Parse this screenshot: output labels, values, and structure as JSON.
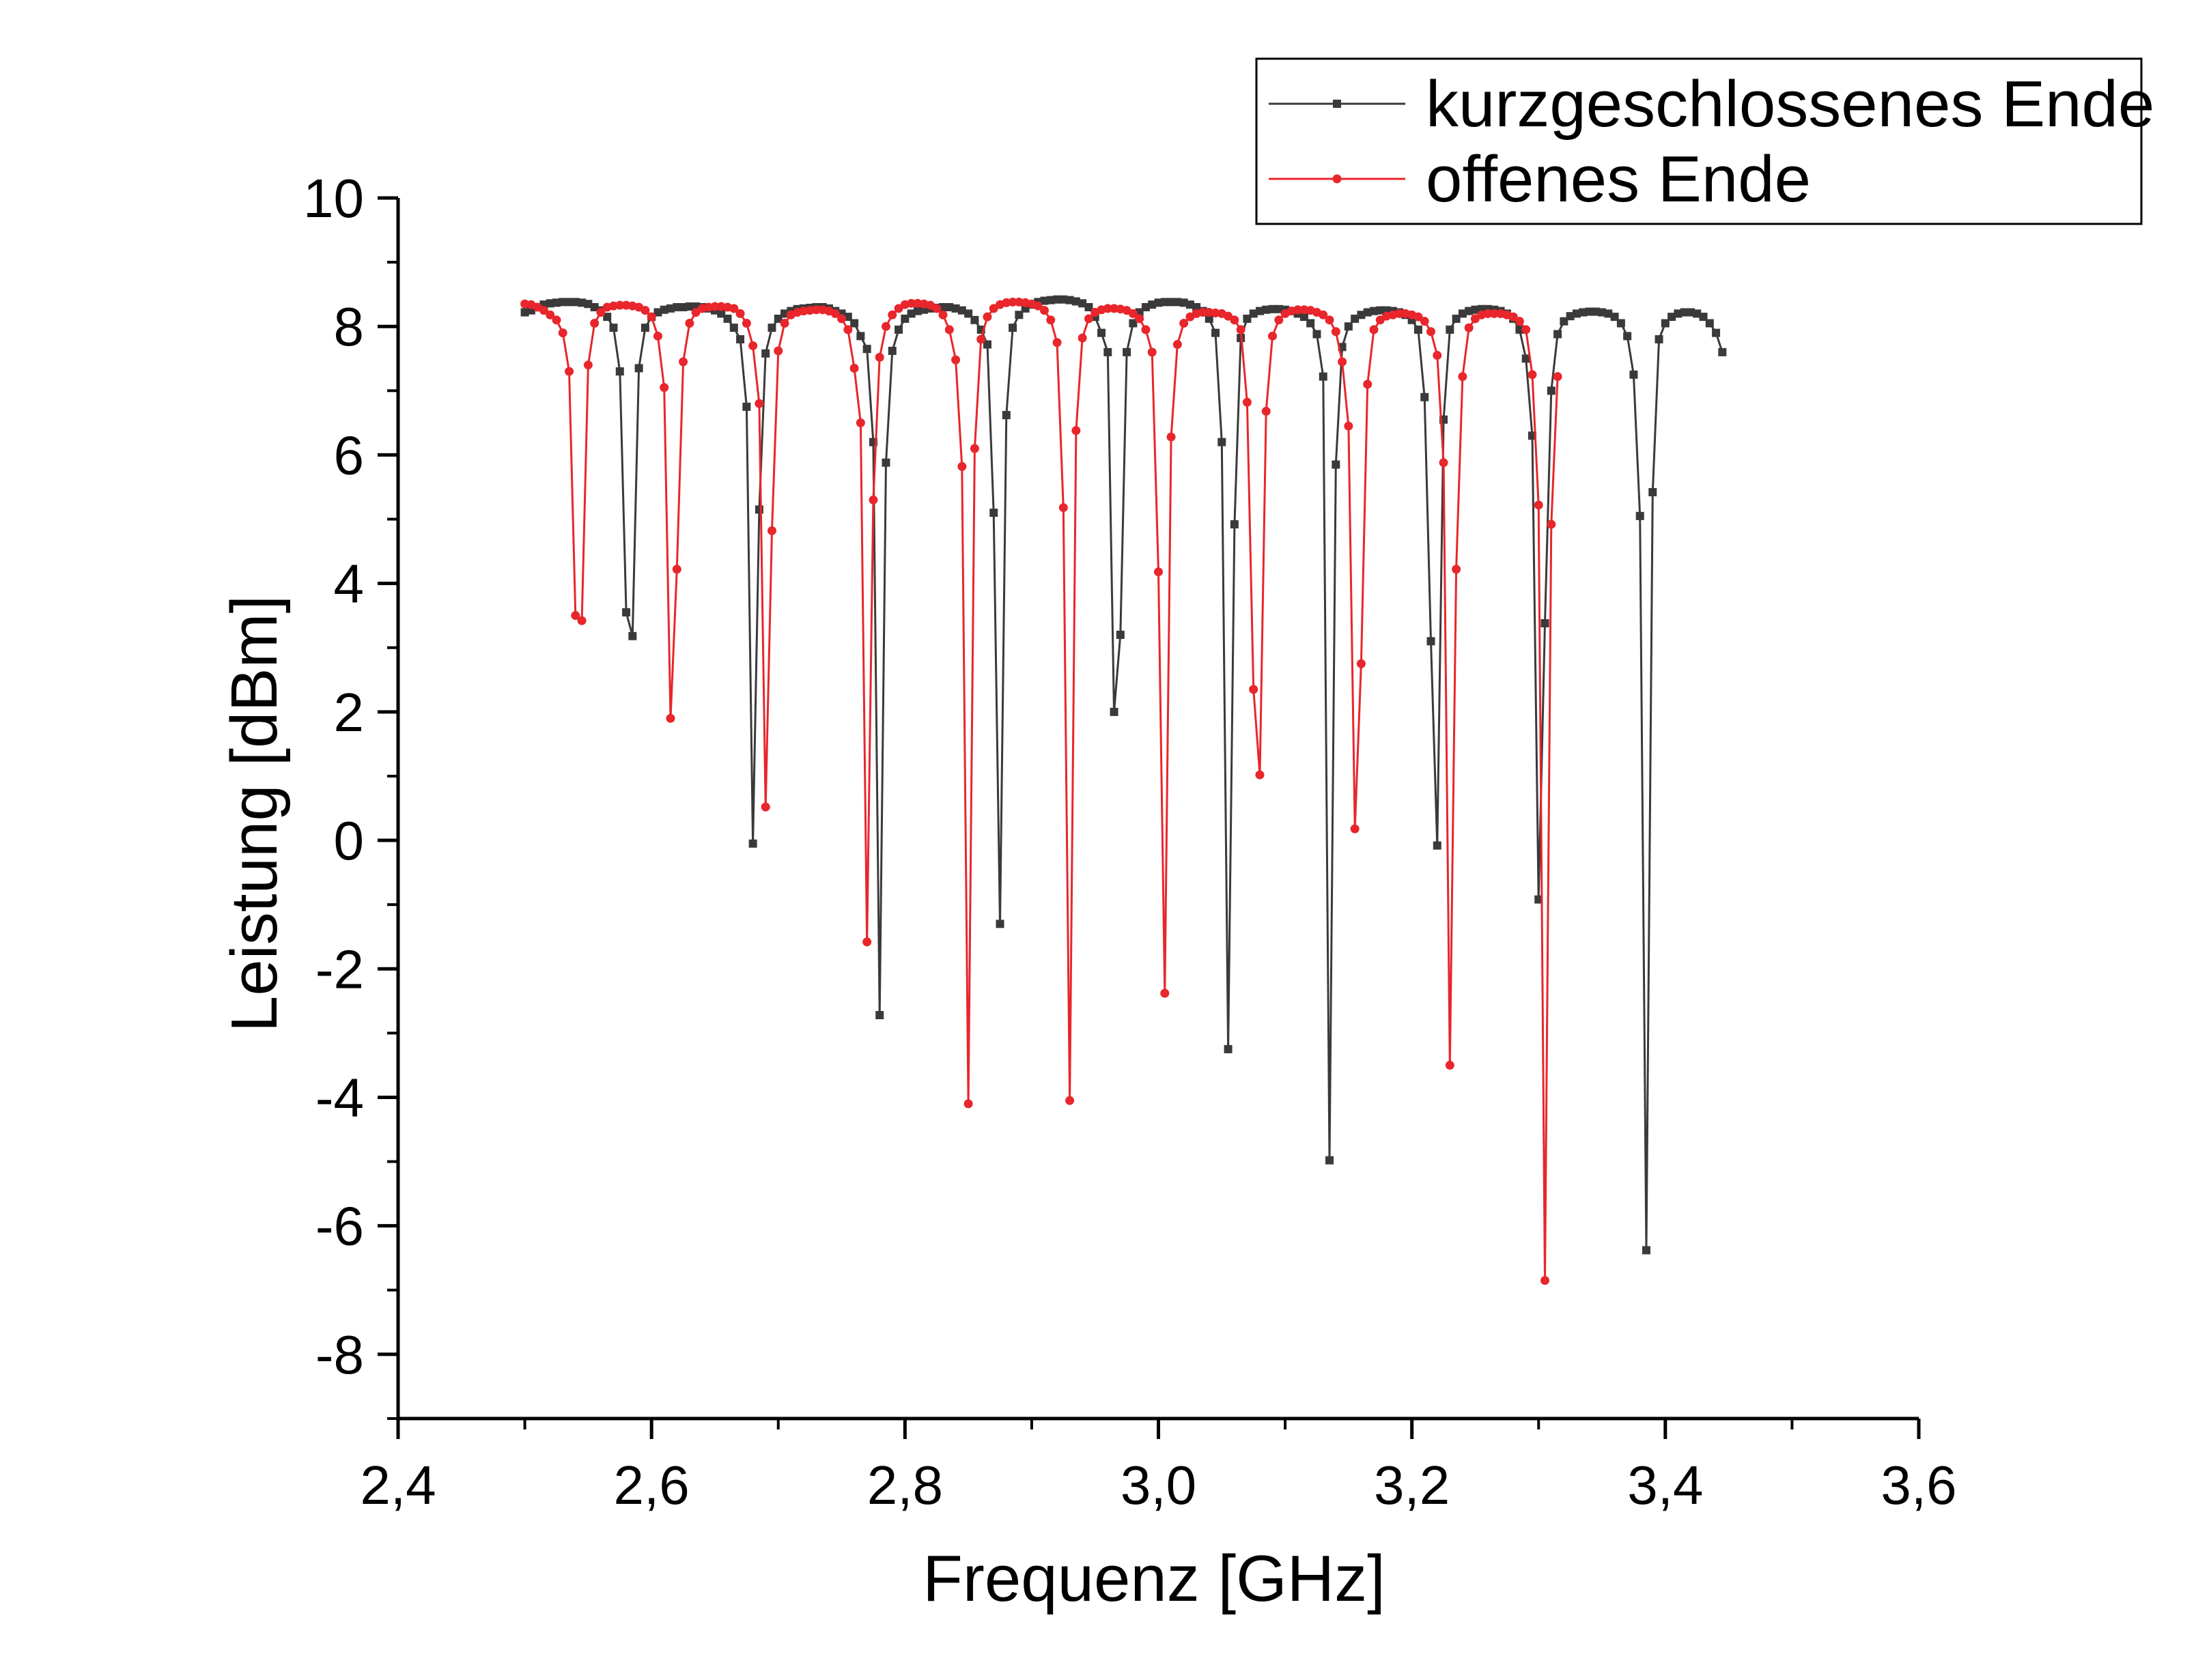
{
  "chart_data": {
    "type": "line",
    "xlabel": "Frequenz [GHz]",
    "ylabel": "Leistung [dBm]",
    "xlim": [
      2.4,
      3.6
    ],
    "ylim": [
      -9,
      10
    ],
    "x_ticks": [
      {
        "value": 2.4,
        "label": "2,4"
      },
      {
        "value": 2.6,
        "label": "2,6"
      },
      {
        "value": 2.8,
        "label": "2,8"
      },
      {
        "value": 3.0,
        "label": "3,0"
      },
      {
        "value": 3.2,
        "label": "3,2"
      },
      {
        "value": 3.4,
        "label": "3,4"
      },
      {
        "value": 3.6,
        "label": "3,6"
      }
    ],
    "y_ticks": [
      {
        "value": -8,
        "label": "-8"
      },
      {
        "value": -6,
        "label": "-6"
      },
      {
        "value": -4,
        "label": "-4"
      },
      {
        "value": -2,
        "label": "-2"
      },
      {
        "value": 0,
        "label": "0"
      },
      {
        "value": 2,
        "label": "2"
      },
      {
        "value": 4,
        "label": "4"
      },
      {
        "value": 6,
        "label": "6"
      },
      {
        "value": 8,
        "label": "8"
      },
      {
        "value": 10,
        "label": "10"
      }
    ],
    "x_start": 2.5,
    "x_step": 0.005,
    "legend_position": "top-right",
    "grid": false,
    "series": [
      {
        "name": "kurzgeschlossenes Ende",
        "color": "#3a3a3a",
        "marker": "square",
        "y": [
          8.22,
          8.25,
          8.3,
          8.34,
          8.36,
          8.37,
          8.38,
          8.38,
          8.38,
          8.37,
          8.35,
          8.3,
          8.25,
          8.15,
          7.98,
          7.3,
          3.55,
          3.18,
          7.35,
          7.98,
          8.15,
          8.22,
          8.26,
          8.28,
          8.3,
          8.3,
          8.31,
          8.31,
          8.3,
          8.28,
          8.25,
          8.2,
          8.12,
          7.98,
          7.8,
          6.75,
          -0.05,
          5.15,
          7.58,
          7.98,
          8.12,
          8.2,
          8.24,
          8.27,
          8.28,
          8.29,
          8.3,
          8.3,
          8.28,
          8.24,
          8.2,
          8.15,
          8.05,
          7.85,
          7.65,
          6.2,
          -2.72,
          5.88,
          7.62,
          7.95,
          8.12,
          8.2,
          8.24,
          8.26,
          8.28,
          8.29,
          8.3,
          8.3,
          8.28,
          8.25,
          8.2,
          8.1,
          7.95,
          7.72,
          5.1,
          -1.3,
          6.62,
          7.98,
          8.18,
          8.28,
          8.34,
          8.38,
          8.4,
          8.41,
          8.42,
          8.42,
          8.41,
          8.39,
          8.36,
          8.3,
          8.15,
          7.9,
          7.6,
          2.0,
          3.2,
          7.6,
          8.05,
          8.22,
          8.3,
          8.34,
          8.37,
          8.38,
          8.38,
          8.38,
          8.37,
          8.34,
          8.3,
          8.24,
          8.12,
          7.9,
          6.2,
          -3.25,
          4.92,
          7.82,
          8.12,
          8.2,
          8.24,
          8.26,
          8.27,
          8.27,
          8.26,
          8.24,
          8.2,
          8.15,
          8.05,
          7.88,
          7.22,
          -4.98,
          5.85,
          7.68,
          8.0,
          8.12,
          8.18,
          8.22,
          8.24,
          8.25,
          8.25,
          8.24,
          8.22,
          8.18,
          8.1,
          7.95,
          6.9,
          3.1,
          -0.08,
          6.55,
          7.95,
          8.12,
          8.2,
          8.24,
          8.26,
          8.27,
          8.27,
          8.26,
          8.24,
          8.2,
          8.12,
          7.95,
          7.5,
          6.3,
          -0.92,
          3.38,
          7.0,
          7.88,
          8.08,
          8.16,
          8.2,
          8.22,
          8.23,
          8.23,
          8.22,
          8.2,
          8.15,
          8.05,
          7.85,
          7.25,
          5.05,
          -6.38,
          5.42,
          7.8,
          8.05,
          8.15,
          8.2,
          8.22,
          8.22,
          8.2,
          8.15,
          8.05,
          7.9,
          7.6
        ]
      },
      {
        "name": "offenes Ende",
        "color": "#e8262b",
        "marker": "circle",
        "y": [
          8.35,
          8.34,
          8.3,
          8.25,
          8.18,
          8.1,
          7.9,
          7.3,
          3.5,
          3.42,
          7.4,
          8.05,
          8.22,
          8.3,
          8.32,
          8.33,
          8.33,
          8.32,
          8.3,
          8.25,
          8.15,
          7.85,
          7.05,
          1.9,
          4.22,
          7.45,
          8.05,
          8.22,
          8.28,
          8.3,
          8.31,
          8.31,
          8.3,
          8.28,
          8.2,
          8.05,
          7.7,
          6.8,
          0.52,
          4.82,
          7.62,
          8.05,
          8.18,
          8.22,
          8.24,
          8.25,
          8.26,
          8.26,
          8.24,
          8.2,
          8.12,
          7.95,
          7.35,
          6.5,
          -1.58,
          5.3,
          7.52,
          8.0,
          8.18,
          8.28,
          8.34,
          8.36,
          8.36,
          8.35,
          8.33,
          8.28,
          8.18,
          7.95,
          7.48,
          5.82,
          -4.1,
          6.1,
          7.8,
          8.15,
          8.28,
          8.34,
          8.37,
          8.38,
          8.38,
          8.37,
          8.35,
          8.32,
          8.25,
          8.1,
          7.75,
          5.18,
          -4.05,
          6.38,
          7.82,
          8.12,
          8.22,
          8.26,
          8.28,
          8.28,
          8.27,
          8.25,
          8.2,
          8.12,
          7.95,
          7.6,
          4.18,
          -2.38,
          6.28,
          7.72,
          8.05,
          8.15,
          8.2,
          8.22,
          8.22,
          8.21,
          8.2,
          8.16,
          8.1,
          7.95,
          6.82,
          2.35,
          1.02,
          6.68,
          7.85,
          8.1,
          8.2,
          8.24,
          8.26,
          8.26,
          8.25,
          8.22,
          8.18,
          8.1,
          7.92,
          7.45,
          6.45,
          0.18,
          2.75,
          7.1,
          7.95,
          8.1,
          8.16,
          8.18,
          8.2,
          8.2,
          8.18,
          8.15,
          8.08,
          7.92,
          7.55,
          5.88,
          -3.5,
          4.22,
          7.22,
          7.98,
          8.12,
          8.18,
          8.2,
          8.2,
          8.2,
          8.18,
          8.15,
          8.08,
          7.95,
          7.25,
          5.22,
          -6.85,
          4.92,
          7.22
        ]
      }
    ]
  }
}
